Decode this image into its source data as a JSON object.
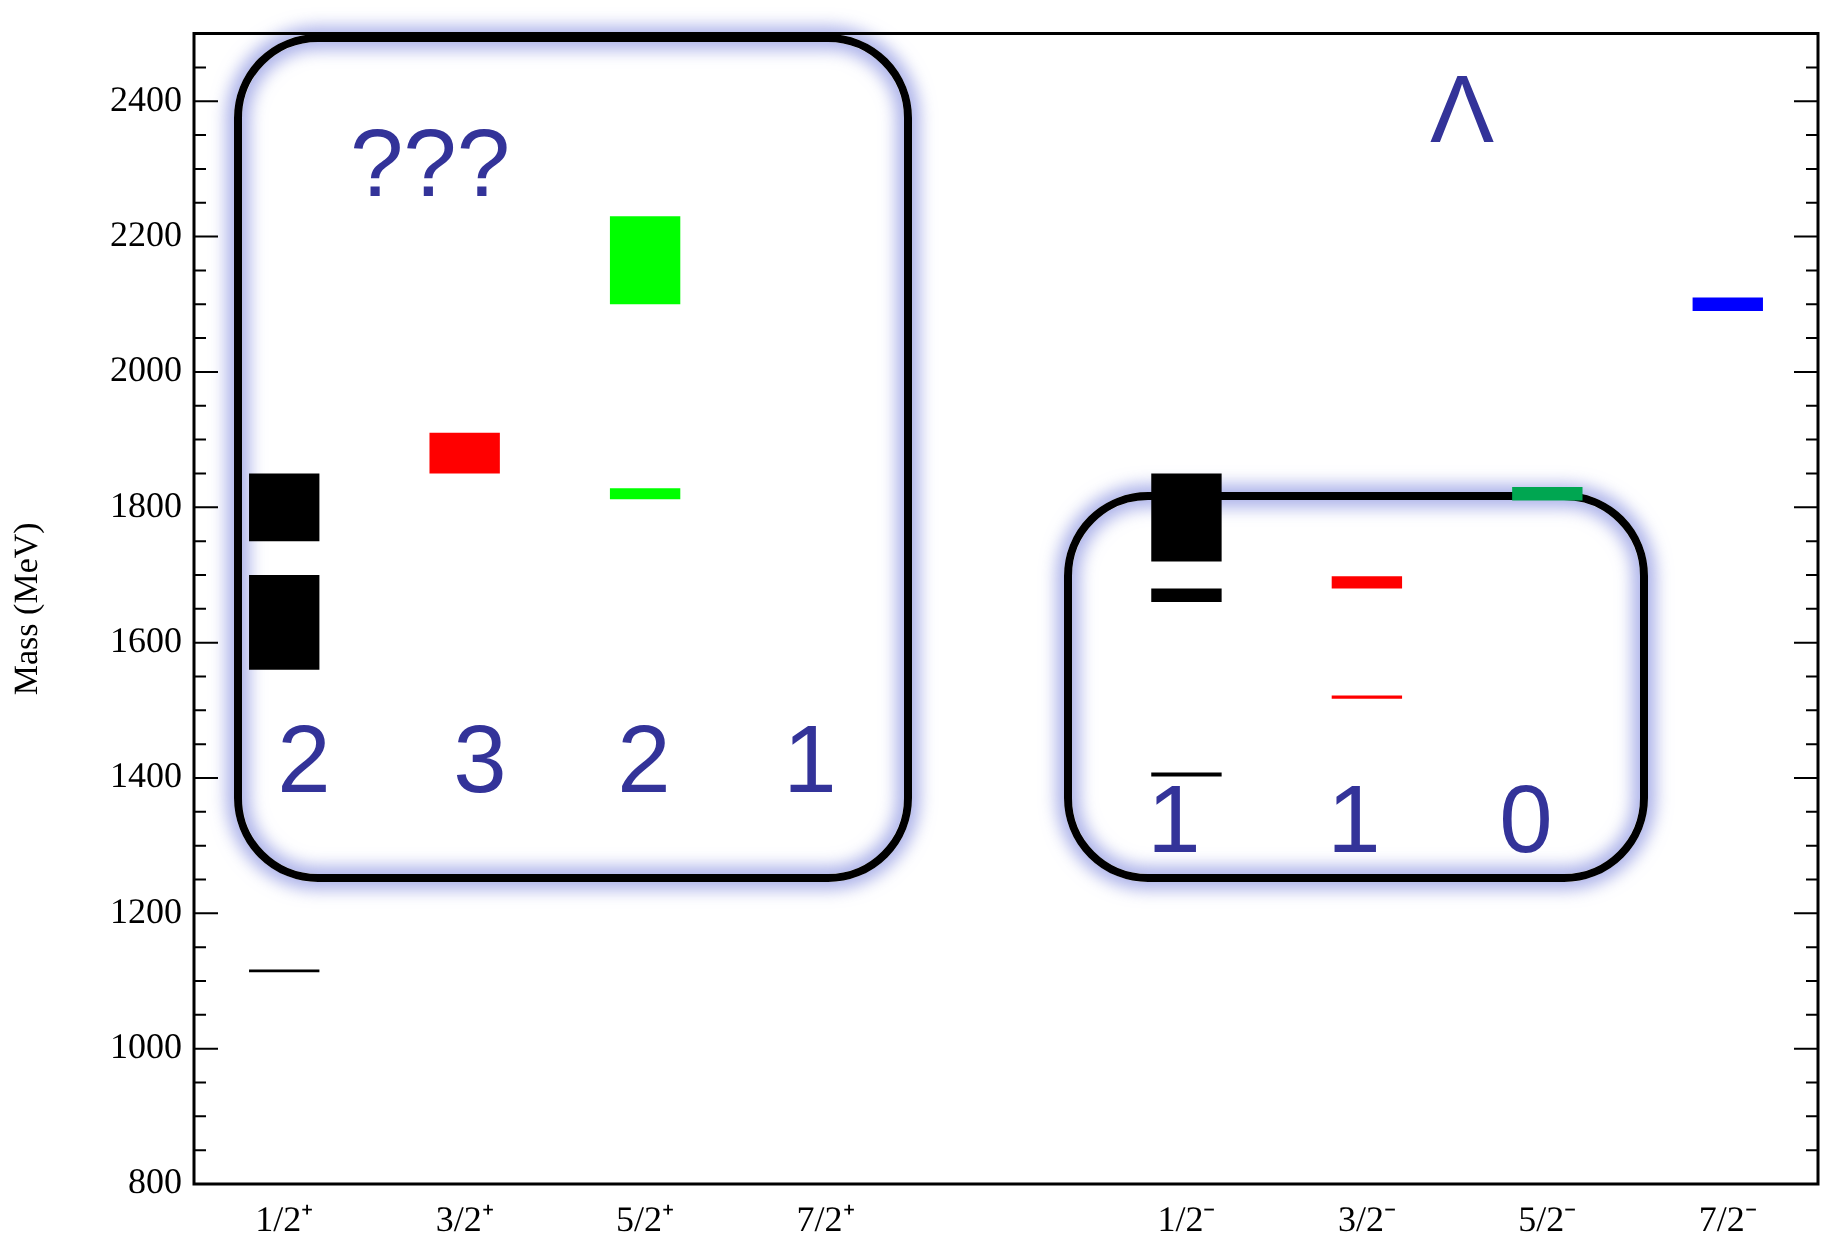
{
  "chart_data": {
    "type": "bar",
    "ylabel": "Mass (MeV)",
    "categories": [
      "1/2⁺",
      "3/2⁺",
      "5/2⁺",
      "7/2⁺",
      null,
      "1/2⁻",
      "3/2⁻",
      "5/2⁻",
      "7/2⁻"
    ],
    "series": [
      {
        "base": [
          1113,
          1850,
          1812,
          null,
          null,
          1402,
          1517,
          1810,
          2090
        ],
        "values": [
          4,
          60,
          16,
          null,
          null,
          6,
          5,
          20,
          20
        ],
        "colors": [
          "#000000",
          "#ff0000",
          "#00ff00",
          null,
          null,
          "#000000",
          "#ff0000",
          "#00a651",
          "#0000ff"
        ]
      },
      {
        "base": [
          1560,
          null,
          2100,
          null,
          null,
          1660,
          1680,
          null,
          null
        ],
        "values": [
          140,
          null,
          130,
          null,
          null,
          20,
          18,
          null,
          null
        ],
        "colors": [
          "#000000",
          null,
          "#00ff00",
          null,
          null,
          "#000000",
          "#ff0000",
          null,
          null
        ]
      },
      {
        "base": [
          1750,
          null,
          null,
          null,
          null,
          1720,
          null,
          null,
          null
        ],
        "values": [
          100,
          null,
          null,
          null,
          null,
          130,
          null,
          null,
          null
        ],
        "colors": [
          "#000000",
          null,
          null,
          null,
          null,
          "#000000",
          null,
          null,
          null
        ]
      }
    ],
    "ylim": [
      800,
      2500
    ],
    "yticks": [
      800,
      {
        "value": 850,
        "label": null
      },
      {
        "value": 900,
        "label": null
      },
      {
        "value": 950,
        "label": null
      },
      1000,
      {
        "value": 1050,
        "label": null
      },
      {
        "value": 1100,
        "label": null
      },
      {
        "value": 1150,
        "label": null
      },
      1200,
      {
        "value": 1250,
        "label": null
      },
      {
        "value": 1300,
        "label": null
      },
      {
        "value": 1350,
        "label": null
      },
      1400,
      {
        "value": 1450,
        "label": null
      },
      {
        "value": 1500,
        "label": null
      },
      {
        "value": 1550,
        "label": null
      },
      1600,
      {
        "value": 1650,
        "label": null
      },
      {
        "value": 1700,
        "label": null
      },
      {
        "value": 1750,
        "label": null
      },
      1800,
      {
        "value": 1850,
        "label": null
      },
      {
        "value": 1900,
        "label": null
      },
      {
        "value": 1950,
        "label": null
      },
      2000,
      {
        "value": 2050,
        "label": null
      },
      {
        "value": 2100,
        "label": null
      },
      {
        "value": 2150,
        "label": null
      },
      2200,
      {
        "value": 2250,
        "label": null
      },
      {
        "value": 2300,
        "label": null
      },
      {
        "value": 2350,
        "label": null
      },
      2400,
      {
        "value": 2450,
        "label": null
      }
    ],
    "grid": false,
    "legend": false,
    "annotations": [
      "???",
      "Λ",
      "2",
      "3",
      "2",
      "1",
      "1",
      "1",
      "0"
    ]
  }
}
